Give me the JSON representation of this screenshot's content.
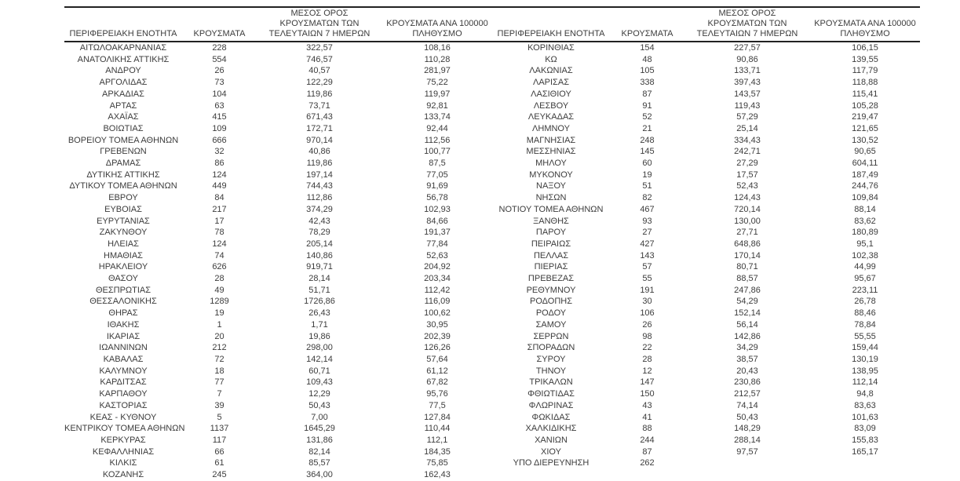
{
  "table": {
    "headers": {
      "region": "ΠΕΡΙΦΕΡΕΙΑΚΗ ΕΝΟΤΗΤΑ",
      "cases": "ΚΡΟΥΣΜΑΤΑ",
      "avg7day": "ΜΕΣΟΣ ΟΡΟΣ ΚΡΟΥΣΜΑΤΩΝ ΤΩΝ ΤΕΛΕΥΤΑΙΩΝ 7 ΗΜΕΡΩΝ",
      "avg7day_lines": [
        "ΜΕΣΟΣ ΟΡΟΣ",
        "ΚΡΟΥΣΜΑΤΩΝ ΤΩΝ",
        "ΤΕΛΕΥΤΑΙΩΝ 7 ΗΜΕΡΩΝ"
      ],
      "per100k": "ΚΡΟΥΣΜΑΤΑ ΑΝΑ 100000 ΠΛΗΘΥΣΜΟ",
      "per100k_lines": [
        "ΚΡΟΥΣΜΑΤΑ ΑΝΑ 100000",
        "ΠΛΗΘΥΣΜΟ"
      ]
    },
    "left_rows": [
      [
        "ΑΙΤΩΛΟΑΚΑΡΝΑΝΙΑΣ",
        "228",
        "322,57",
        "108,16"
      ],
      [
        "ΑΝΑΤΟΛΙΚΗΣ ΑΤΤΙΚΗΣ",
        "554",
        "746,57",
        "110,28"
      ],
      [
        "ΑΝΔΡΟΥ",
        "26",
        "40,57",
        "281,97"
      ],
      [
        "ΑΡΓΟΛΙΔΑΣ",
        "73",
        "122,29",
        "75,22"
      ],
      [
        "ΑΡΚΑΔΙΑΣ",
        "104",
        "119,86",
        "119,97"
      ],
      [
        "ΑΡΤΑΣ",
        "63",
        "73,71",
        "92,81"
      ],
      [
        "ΑΧΑΪΑΣ",
        "415",
        "671,43",
        "133,74"
      ],
      [
        "ΒΟΙΩΤΙΑΣ",
        "109",
        "172,71",
        "92,44"
      ],
      [
        "ΒΟΡΕΙΟΥ ΤΟΜΕΑ ΑΘΗΝΩΝ",
        "666",
        "970,14",
        "112,56"
      ],
      [
        "ΓΡΕΒΕΝΩΝ",
        "32",
        "40,86",
        "100,77"
      ],
      [
        "ΔΡΑΜΑΣ",
        "86",
        "119,86",
        "87,5"
      ],
      [
        "ΔΥΤΙΚΗΣ ΑΤΤΙΚΗΣ",
        "124",
        "197,14",
        "77,05"
      ],
      [
        "ΔΥΤΙΚΟΥ ΤΟΜΕΑ ΑΘΗΝΩΝ",
        "449",
        "744,43",
        "91,69"
      ],
      [
        "ΕΒΡΟΥ",
        "84",
        "112,86",
        "56,78"
      ],
      [
        "ΕΥΒΟΙΑΣ",
        "217",
        "374,29",
        "102,93"
      ],
      [
        "ΕΥΡΥΤΑΝΙΑΣ",
        "17",
        "42,43",
        "84,66"
      ],
      [
        "ΖΑΚΥΝΘΟΥ",
        "78",
        "78,29",
        "191,37"
      ],
      [
        "ΗΛΕΙΑΣ",
        "124",
        "205,14",
        "77,84"
      ],
      [
        "ΗΜΑΘΙΑΣ",
        "74",
        "140,86",
        "52,63"
      ],
      [
        "ΗΡΑΚΛΕΙΟΥ",
        "626",
        "919,71",
        "204,92"
      ],
      [
        "ΘΑΣΟΥ",
        "28",
        "28,14",
        "203,34"
      ],
      [
        "ΘΕΣΠΡΩΤΙΑΣ",
        "49",
        "51,71",
        "112,42"
      ],
      [
        "ΘΕΣΣΑΛΟΝΙΚΗΣ",
        "1289",
        "1726,86",
        "116,09"
      ],
      [
        "ΘΗΡΑΣ",
        "19",
        "26,43",
        "100,62"
      ],
      [
        "ΙΘΑΚΗΣ",
        "1",
        "1,71",
        "30,95"
      ],
      [
        "ΙΚΑΡΙΑΣ",
        "20",
        "19,86",
        "202,39"
      ],
      [
        "ΙΩΑΝΝΙΝΩΝ",
        "212",
        "298,00",
        "126,26"
      ],
      [
        "ΚΑΒΑΛΑΣ",
        "72",
        "142,14",
        "57,64"
      ],
      [
        "ΚΑΛΥΜΝΟΥ",
        "18",
        "60,71",
        "61,12"
      ],
      [
        "ΚΑΡΔΙΤΣΑΣ",
        "77",
        "109,43",
        "67,82"
      ],
      [
        "ΚΑΡΠΑΘΟΥ",
        "7",
        "12,29",
        "95,76"
      ],
      [
        "ΚΑΣΤΟΡΙΑΣ",
        "39",
        "50,43",
        "77,5"
      ],
      [
        "ΚΕΑΣ - ΚΥΘΝΟΥ",
        "5",
        "7,00",
        "127,84"
      ],
      [
        "ΚΕΝΤΡΙΚΟΥ ΤΟΜΕΑ ΑΘΗΝΩΝ",
        "1137",
        "1645,29",
        "110,44"
      ],
      [
        "ΚΕΡΚΥΡΑΣ",
        "117",
        "131,86",
        "112,1"
      ],
      [
        "ΚΕΦΑΛΛΗΝΙΑΣ",
        "66",
        "82,14",
        "184,35"
      ],
      [
        "ΚΙΛΚΙΣ",
        "61",
        "85,57",
        "75,85"
      ],
      [
        "ΚΟΖΑΝΗΣ",
        "245",
        "364,00",
        "162,43"
      ]
    ],
    "right_rows": [
      [
        "ΚΟΡΙΝΘΙΑΣ",
        "154",
        "227,57",
        "106,15"
      ],
      [
        "ΚΩ",
        "48",
        "90,86",
        "139,55"
      ],
      [
        "ΛΑΚΩΝΙΑΣ",
        "105",
        "133,71",
        "117,79"
      ],
      [
        "ΛΑΡΙΣΑΣ",
        "338",
        "397,43",
        "118,88"
      ],
      [
        "ΛΑΣΙΘΙΟΥ",
        "87",
        "143,57",
        "115,41"
      ],
      [
        "ΛΕΣΒΟΥ",
        "91",
        "119,43",
        "105,28"
      ],
      [
        "ΛΕΥΚΑΔΑΣ",
        "52",
        "57,29",
        "219,47"
      ],
      [
        "ΛΗΜΝΟΥ",
        "21",
        "25,14",
        "121,65"
      ],
      [
        "ΜΑΓΝΗΣΙΑΣ",
        "248",
        "334,43",
        "130,52"
      ],
      [
        "ΜΕΣΣΗΝΙΑΣ",
        "145",
        "242,71",
        "90,65"
      ],
      [
        "ΜΗΛΟΥ",
        "60",
        "27,29",
        "604,11"
      ],
      [
        "ΜΥΚΟΝΟΥ",
        "19",
        "17,57",
        "187,49"
      ],
      [
        "ΝΑΞΟΥ",
        "51",
        "52,43",
        "244,76"
      ],
      [
        "ΝΗΣΩΝ",
        "82",
        "124,43",
        "109,84"
      ],
      [
        "ΝΟΤΙΟΥ ΤΟΜΕΑ ΑΘΗΝΩΝ",
        "467",
        "720,14",
        "88,14"
      ],
      [
        "ΞΑΝΘΗΣ",
        "93",
        "130,00",
        "83,62"
      ],
      [
        "ΠΑΡΟΥ",
        "27",
        "27,71",
        "180,89"
      ],
      [
        "ΠΕΙΡΑΙΩΣ",
        "427",
        "648,86",
        "95,1"
      ],
      [
        "ΠΕΛΛΑΣ",
        "143",
        "170,14",
        "102,38"
      ],
      [
        "ΠΙΕΡΙΑΣ",
        "57",
        "80,71",
        "44,99"
      ],
      [
        "ΠΡΕΒΕΖΑΣ",
        "55",
        "88,57",
        "95,67"
      ],
      [
        "ΡΕΘΥΜΝΟΥ",
        "191",
        "247,86",
        "223,11"
      ],
      [
        "ΡΟΔΟΠΗΣ",
        "30",
        "54,29",
        "26,78"
      ],
      [
        "ΡΟΔΟΥ",
        "106",
        "152,14",
        "88,46"
      ],
      [
        "ΣΑΜΟΥ",
        "26",
        "56,14",
        "78,84"
      ],
      [
        "ΣΕΡΡΩΝ",
        "98",
        "142,86",
        "55,55"
      ],
      [
        "ΣΠΟΡΑΔΩΝ",
        "22",
        "34,29",
        "159,44"
      ],
      [
        "ΣΥΡΟΥ",
        "28",
        "38,57",
        "130,19"
      ],
      [
        "ΤΗΝΟΥ",
        "12",
        "20,43",
        "138,95"
      ],
      [
        "ΤΡΙΚΑΛΩΝ",
        "147",
        "230,86",
        "112,14"
      ],
      [
        "ΦΘΙΩΤΙΔΑΣ",
        "150",
        "212,57",
        "94,8"
      ],
      [
        "ΦΛΩΡΙΝΑΣ",
        "43",
        "74,14",
        "83,63"
      ],
      [
        "ΦΩΚΙΔΑΣ",
        "41",
        "50,43",
        "101,63"
      ],
      [
        "ΧΑΛΚΙΔΙΚΗΣ",
        "88",
        "148,29",
        "83,09"
      ],
      [
        "ΧΑΝΙΩΝ",
        "244",
        "288,14",
        "155,83"
      ],
      [
        "ΧΙΟΥ",
        "87",
        "97,57",
        "165,17"
      ],
      [
        "ΥΠΟ ΔΙΕΡΕΥΝΗΣΗ",
        "262",
        "",
        ""
      ]
    ]
  },
  "colors": {
    "background": "#ffffff",
    "text": "#3c3c3c",
    "rule": "#222222"
  }
}
